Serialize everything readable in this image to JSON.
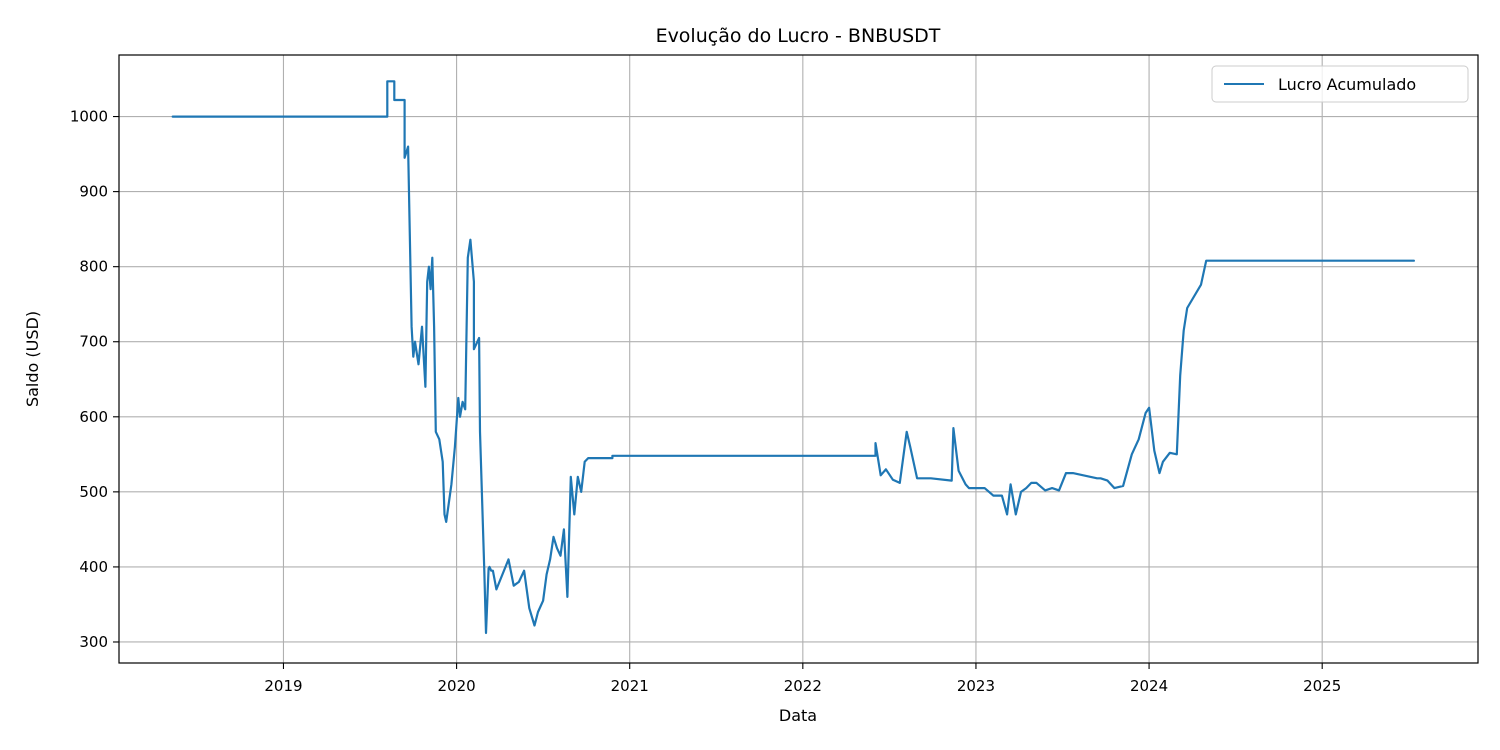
{
  "chart_data": {
    "type": "line",
    "title": "Evolução do Lucro - BNBUSDT",
    "xlabel": "Data",
    "ylabel": "Saldo (USD)",
    "xlim": [
      2018.05,
      2025.9
    ],
    "ylim": [
      272,
      1082
    ],
    "x_ticks": [
      2019,
      2020,
      2021,
      2022,
      2023,
      2024,
      2025
    ],
    "x_tick_labels": [
      "2019",
      "2020",
      "2021",
      "2022",
      "2023",
      "2024",
      "2025"
    ],
    "y_ticks": [
      300,
      400,
      500,
      600,
      700,
      800,
      900,
      1000
    ],
    "y_tick_labels": [
      "300",
      "400",
      "500",
      "600",
      "700",
      "800",
      "900",
      "1000"
    ],
    "grid": true,
    "legend_position": "top-right",
    "series": [
      {
        "name": "Lucro Acumulado",
        "color": "#1f77b4",
        "x": [
          2018.36,
          2019.6,
          2019.6,
          2019.64,
          2019.64,
          2019.7,
          2019.7,
          2019.72,
          2019.74,
          2019.75,
          2019.76,
          2019.78,
          2019.8,
          2019.82,
          2019.83,
          2019.84,
          2019.85,
          2019.86,
          2019.87,
          2019.88,
          2019.9,
          2019.92,
          2019.93,
          2019.94,
          2019.955,
          2019.97,
          2019.99,
          2020.01,
          2020.02,
          2020.035,
          2020.05,
          2020.065,
          2020.08,
          2020.1,
          2020.1,
          2020.13,
          2020.135,
          2020.16,
          2020.17,
          2020.185,
          2020.19,
          2020.2,
          2020.21,
          2020.23,
          2020.3,
          2020.33,
          2020.36,
          2020.39,
          2020.42,
          2020.45,
          2020.47,
          2020.5,
          2020.52,
          2020.54,
          2020.56,
          2020.58,
          2020.6,
          2020.62,
          2020.64,
          2020.66,
          2020.68,
          2020.7,
          2020.72,
          2020.74,
          2020.76,
          2020.78,
          2020.82,
          2020.9,
          2020.9,
          2022.42,
          2022.42,
          2022.45,
          2022.48,
          2022.52,
          2022.56,
          2022.6,
          2022.62,
          2022.66,
          2022.74,
          2022.86,
          2022.87,
          2022.9,
          2022.94,
          2022.96,
          2023.05,
          2023.1,
          2023.15,
          2023.18,
          2023.2,
          2023.23,
          2023.26,
          2023.29,
          2023.32,
          2023.35,
          2023.4,
          2023.44,
          2023.48,
          2023.52,
          2023.56,
          2023.7,
          2023.72,
          2023.76,
          2023.8,
          2023.85,
          2023.9,
          2023.94,
          2023.98,
          2024.0,
          2024.03,
          2024.06,
          2024.08,
          2024.12,
          2024.16,
          2024.18,
          2024.2,
          2024.22,
          2024.3,
          2024.3,
          2024.33,
          2025.53
        ],
        "values": [
          1000,
          1000,
          1047,
          1047,
          1022,
          1022,
          945,
          960,
          720,
          680,
          700,
          670,
          720,
          640,
          780,
          800,
          770,
          812,
          720,
          580,
          570,
          540,
          470,
          460,
          485,
          510,
          560,
          625,
          600,
          620,
          610,
          812,
          836,
          780,
          690,
          705,
          580,
          395,
          312,
          398,
          400,
          395,
          395,
          370,
          410,
          375,
          380,
          395,
          345,
          322,
          340,
          355,
          390,
          410,
          440,
          425,
          415,
          450,
          360,
          520,
          470,
          520,
          500,
          540,
          545,
          545,
          545,
          545,
          548,
          548,
          565,
          522,
          530,
          516,
          512,
          580,
          560,
          518,
          518,
          515,
          585,
          528,
          510,
          505,
          505,
          495,
          495,
          470,
          510,
          470,
          500,
          505,
          512,
          512,
          502,
          505,
          502,
          525,
          525,
          518,
          518,
          515,
          505,
          508,
          550,
          570,
          605,
          612,
          555,
          525,
          540,
          552,
          550,
          655,
          715,
          745,
          776,
          776,
          808,
          808
        ]
      }
    ]
  }
}
